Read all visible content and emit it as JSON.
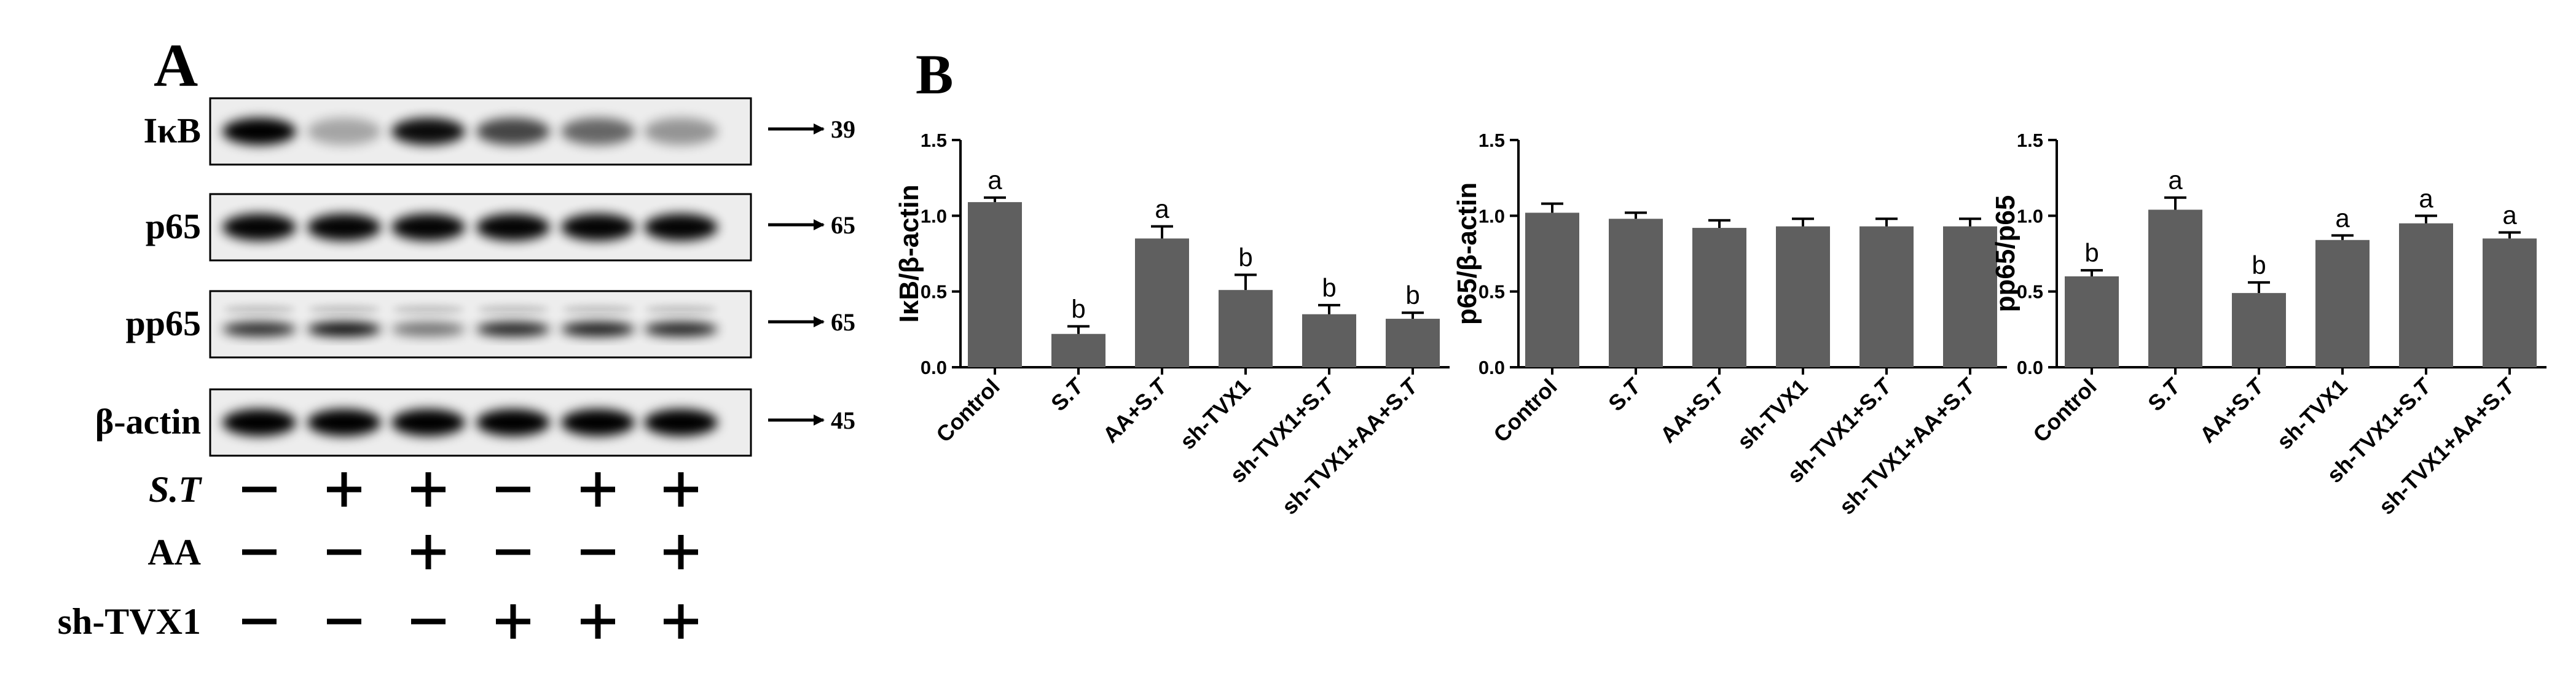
{
  "panel_a": {
    "label": "A",
    "rows": [
      {
        "name": "IκB",
        "mw": "39",
        "intensities": [
          1.0,
          0.22,
          0.95,
          0.68,
          0.52,
          0.3
        ],
        "faint_top": false
      },
      {
        "name": "p65",
        "mw": "65",
        "intensities": [
          0.98,
          0.98,
          0.98,
          0.98,
          0.98,
          0.98
        ],
        "faint_top": false
      },
      {
        "name": "pp65",
        "mw": "65",
        "intensities": [
          0.8,
          0.95,
          0.45,
          0.85,
          0.88,
          0.85
        ],
        "faint_top": true
      },
      {
        "name": "β-actin",
        "mw": "45",
        "intensities": [
          1.0,
          1.0,
          1.0,
          1.0,
          1.0,
          1.0
        ],
        "faint_top": false
      }
    ],
    "treatments": [
      {
        "name": "S.T",
        "italic": true,
        "signs": [
          "−",
          "+",
          "+",
          "−",
          "+",
          "+"
        ]
      },
      {
        "name": "AA",
        "italic": false,
        "signs": [
          "−",
          "−",
          "+",
          "−",
          "−",
          "+"
        ]
      },
      {
        "name": "sh-TVX1",
        "italic": false,
        "signs": [
          "−",
          "−",
          "−",
          "+",
          "+",
          "+"
        ]
      }
    ]
  },
  "panel_b": {
    "label": "B"
  },
  "chart_data": [
    {
      "type": "bar",
      "categories": [
        "Control",
        "S.T",
        "AA+S.T",
        "sh-TVX1",
        "sh-TVX1+S.T",
        "sh-TVX1+AA+S.T"
      ],
      "values": [
        1.09,
        0.22,
        0.85,
        0.51,
        0.35,
        0.32
      ],
      "errors": [
        0.03,
        0.05,
        0.08,
        0.1,
        0.06,
        0.04
      ],
      "letters": [
        "a",
        "b",
        "a",
        "b",
        "b",
        "b"
      ],
      "ylabel": "IκB/β-actin",
      "ylim": [
        0,
        1.5
      ],
      "yticks": [
        "0.0",
        "0.5",
        "1.0",
        "1.5"
      ],
      "bar_color": "#5f5f5f"
    },
    {
      "type": "bar",
      "categories": [
        "Control",
        "S.T",
        "AA+S.T",
        "sh-TVX1",
        "sh-TVX1+S.T",
        "sh-TVX1+AA+S.T"
      ],
      "values": [
        1.02,
        0.98,
        0.92,
        0.93,
        0.93,
        0.93
      ],
      "errors": [
        0.06,
        0.04,
        0.05,
        0.05,
        0.05,
        0.05
      ],
      "letters": [
        "",
        "",
        "",
        "",
        "",
        ""
      ],
      "ylabel": "p65/β-actin",
      "ylim": [
        0,
        1.5
      ],
      "yticks": [
        "0.0",
        "0.5",
        "1.0",
        "1.5"
      ],
      "bar_color": "#5f5f5f"
    },
    {
      "type": "bar",
      "categories": [
        "Control",
        "S.T",
        "AA+S.T",
        "sh-TVX1",
        "sh-TVX1+S.T",
        "sh-TVX1+AA+S.T"
      ],
      "values": [
        0.6,
        1.04,
        0.49,
        0.84,
        0.95,
        0.85
      ],
      "errors": [
        0.04,
        0.08,
        0.07,
        0.03,
        0.05,
        0.04
      ],
      "letters": [
        "b",
        "a",
        "b",
        "a",
        "a",
        "a"
      ],
      "ylabel": "pp65/p65",
      "ylim": [
        0,
        1.5
      ],
      "yticks": [
        "0.0",
        "0.5",
        "1.0",
        "1.5"
      ],
      "bar_color": "#5f5f5f"
    }
  ]
}
